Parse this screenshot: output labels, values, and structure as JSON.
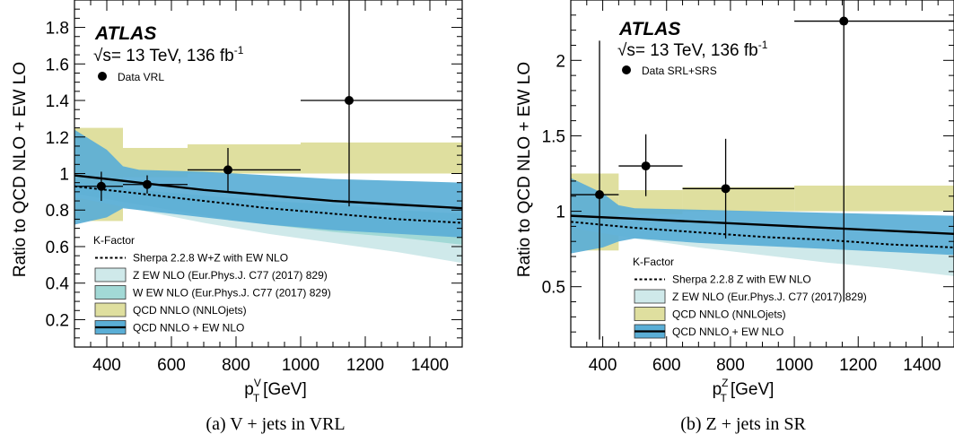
{
  "colors": {
    "zew_band": "#cfe9ea",
    "wew_band": "#a2d9d6",
    "qcd_nnlo_band": "#dfdf9f",
    "combined_band": "#5aaed6",
    "line": "#000000"
  },
  "chart_data": [
    {
      "type": "line",
      "panel_caption": "(a) V + jets in VRL",
      "experiment": "ATLAS",
      "energy_label": "√s= 13 TeV, 136 fb",
      "lumi_exponent": "-1",
      "data_legend": "Data VRL",
      "ylabel": "Ratio to QCD NLO + EW LO",
      "xlabel_base": "p",
      "xlabel_sup": "V",
      "xlabel_sub": "T",
      "xlabel_unit": "[GeV]",
      "xlim": [
        300,
        1500
      ],
      "ylim": [
        0.05,
        1.95
      ],
      "xticks": [
        400,
        600,
        800,
        1000,
        1200,
        1400
      ],
      "yticks": [
        0.2,
        0.4,
        0.6,
        0.8,
        1,
        1.2,
        1.4,
        1.6,
        1.8
      ],
      "ytick_labels": [
        "0.2",
        "0.4",
        "0.6",
        "0.8",
        "1",
        "1.2",
        "1.4",
        "1.6",
        "1.8"
      ],
      "legend_title": "K-Factor",
      "legend": [
        {
          "label": "Sherpa 2.2.8 W+Z with EW NLO",
          "kind": "dotted"
        },
        {
          "label": "Z EW NLO (Eur.Phys.J. C77 (2017) 829)",
          "kind": "zew"
        },
        {
          "label": "W EW NLO (Eur.Phys.J. C77 (2017) 829)",
          "kind": "wew"
        },
        {
          "label": "QCD NNLO (NNLOjets)",
          "kind": "qcd"
        },
        {
          "label": "QCD NNLO + EW NLO",
          "kind": "combined"
        }
      ],
      "bands": {
        "zew": {
          "x": [
            300,
            500,
            700,
            900,
            1100,
            1300,
            1500
          ],
          "low": [
            0.87,
            0.8,
            0.73,
            0.67,
            0.62,
            0.57,
            0.51
          ],
          "high": [
            0.93,
            0.9,
            0.86,
            0.82,
            0.79,
            0.76,
            0.73
          ]
        },
        "wew": {
          "x": [
            300,
            500,
            700,
            900,
            1100,
            1300,
            1500
          ],
          "low": [
            0.89,
            0.83,
            0.77,
            0.72,
            0.68,
            0.65,
            0.61
          ],
          "high": [
            0.95,
            0.91,
            0.88,
            0.85,
            0.83,
            0.8,
            0.78
          ]
        },
        "qcd": [
          {
            "x0": 300,
            "x1": 450,
            "low": 0.74,
            "high": 1.25
          },
          {
            "x0": 450,
            "x1": 650,
            "low": 0.98,
            "high": 1.14
          },
          {
            "x0": 650,
            "x1": 1000,
            "low": 1.0,
            "high": 1.16
          },
          {
            "x0": 1000,
            "x1": 1500,
            "low": 1.0,
            "high": 1.17
          }
        ],
        "combined": {
          "x": [
            300,
            400,
            450,
            500,
            700,
            900,
            1100,
            1300,
            1500
          ],
          "low": [
            0.72,
            0.76,
            0.81,
            0.8,
            0.76,
            0.72,
            0.69,
            0.67,
            0.65
          ],
          "high": [
            1.24,
            1.13,
            1.04,
            1.02,
            1.01,
            0.99,
            0.97,
            0.96,
            0.95
          ]
        }
      },
      "series": [
        {
          "name": "Sherpa 2.2.8 W+Z with EW NLO",
          "style": "dotted",
          "x": [
            300,
            500,
            700,
            900,
            1100,
            1300,
            1500
          ],
          "y": [
            0.93,
            0.89,
            0.85,
            0.81,
            0.78,
            0.75,
            0.73
          ]
        },
        {
          "name": "QCD NNLO + EW NLO",
          "style": "solid",
          "x": [
            300,
            500,
            700,
            900,
            1100,
            1300,
            1500
          ],
          "y": [
            0.99,
            0.95,
            0.91,
            0.88,
            0.85,
            0.83,
            0.81
          ]
        }
      ],
      "points": [
        {
          "x": 383,
          "y": 0.93,
          "xlo": 300,
          "xhi": 450,
          "ylo": 0.85,
          "yhi": 1.01
        },
        {
          "x": 525,
          "y": 0.94,
          "xlo": 450,
          "xhi": 650,
          "ylo": 0.89,
          "yhi": 0.99
        },
        {
          "x": 775,
          "y": 1.02,
          "xlo": 650,
          "xhi": 1000,
          "ylo": 0.9,
          "yhi": 1.14
        },
        {
          "x": 1150,
          "y": 1.4,
          "xlo": 1000,
          "xhi": 1500,
          "ylo": 0.82,
          "yhi": 2.0
        }
      ]
    },
    {
      "type": "line",
      "panel_caption": "(b) Z + jets in SR",
      "experiment": "ATLAS",
      "energy_label": "√s= 13 TeV, 136 fb",
      "lumi_exponent": "-1",
      "data_legend": "Data SRL+SRS",
      "ylabel": "Ratio to QCD NLO + EW LO",
      "xlabel_base": "p",
      "xlabel_sup": "Z",
      "xlabel_sub": "T",
      "xlabel_unit": "[GeV]",
      "xlim": [
        300,
        1500
      ],
      "ylim": [
        0.1,
        2.4
      ],
      "xticks": [
        400,
        600,
        800,
        1000,
        1200,
        1400
      ],
      "yticks": [
        0.5,
        1,
        1.5,
        2
      ],
      "ytick_labels": [
        "0.5",
        "1",
        "1.5",
        "2"
      ],
      "legend_title": "K-Factor",
      "legend": [
        {
          "label": "Sherpa 2.2.8 Z with EW NLO",
          "kind": "dotted"
        },
        {
          "label": "Z EW NLO (Eur.Phys.J. C77 (2017) 829)",
          "kind": "zew"
        },
        {
          "label": "QCD NNLO (NNLOjets)",
          "kind": "qcd"
        },
        {
          "label": "QCD NNLO + EW NLO",
          "kind": "combined"
        }
      ],
      "bands": {
        "zew": {
          "x": [
            300,
            500,
            700,
            900,
            1100,
            1300,
            1500
          ],
          "low": [
            0.89,
            0.82,
            0.76,
            0.71,
            0.66,
            0.62,
            0.57
          ],
          "high": [
            0.93,
            0.9,
            0.87,
            0.84,
            0.81,
            0.79,
            0.76
          ]
        },
        "qcd": [
          {
            "x0": 300,
            "x1": 450,
            "low": 0.74,
            "high": 1.25
          },
          {
            "x0": 450,
            "x1": 650,
            "low": 0.98,
            "high": 1.14
          },
          {
            "x0": 650,
            "x1": 1000,
            "low": 1.0,
            "high": 1.16
          },
          {
            "x0": 1000,
            "x1": 1500,
            "low": 1.0,
            "high": 1.17
          }
        ],
        "combined": {
          "x": [
            300,
            400,
            450,
            500,
            700,
            900,
            1100,
            1300,
            1500
          ],
          "low": [
            0.72,
            0.76,
            0.8,
            0.82,
            0.79,
            0.77,
            0.75,
            0.73,
            0.71
          ],
          "high": [
            1.22,
            1.12,
            1.04,
            1.02,
            1.01,
            1.0,
            0.99,
            0.98,
            0.97
          ]
        }
      },
      "series": [
        {
          "name": "Sherpa 2.2.8 Z with EW NLO",
          "style": "dotted",
          "x": [
            300,
            500,
            700,
            900,
            1100,
            1300,
            1500
          ],
          "y": [
            0.93,
            0.89,
            0.86,
            0.83,
            0.81,
            0.78,
            0.76
          ]
        },
        {
          "name": "QCD NNLO + EW NLO",
          "style": "solid",
          "x": [
            300,
            500,
            700,
            900,
            1100,
            1300,
            1500
          ],
          "y": [
            0.97,
            0.95,
            0.93,
            0.91,
            0.89,
            0.87,
            0.85
          ]
        }
      ],
      "points": [
        {
          "x": 390,
          "y": 1.11,
          "xlo": 300,
          "xhi": 450,
          "ylo": 0.15,
          "yhi": 2.13
        },
        {
          "x": 535,
          "y": 1.3,
          "xlo": 450,
          "xhi": 650,
          "ylo": 1.1,
          "yhi": 1.51
        },
        {
          "x": 785,
          "y": 1.15,
          "xlo": 650,
          "xhi": 1000,
          "ylo": 0.82,
          "yhi": 1.48
        },
        {
          "x": 1155,
          "y": 2.26,
          "xlo": 1000,
          "xhi": 1500,
          "ylo": 0.4,
          "yhi": 2.45
        }
      ]
    }
  ]
}
